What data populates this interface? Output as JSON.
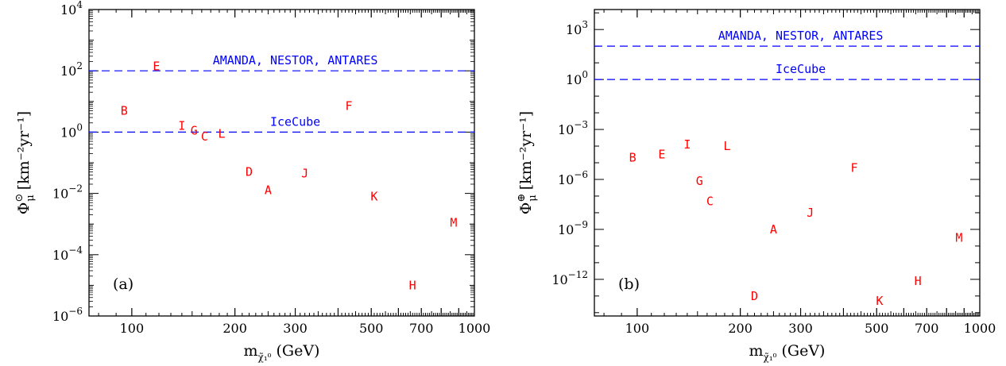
{
  "chart_data": [
    {
      "type": "scatter",
      "panel_label": "(a)",
      "xlabel": "m",
      "xlabel_sub": "χ̃₁⁰",
      "xlabel_unit": "(GeV)",
      "ylabel_symbol": "Φ",
      "ylabel_sup": "⊙",
      "ylabel_sub": "μ",
      "ylabel_unit": "[km⁻²yr⁻¹]",
      "x_scale": "log",
      "y_scale": "log",
      "xlim": [
        75,
        1000
      ],
      "ylim_log10": [
        -6,
        4
      ],
      "x_ticks": [
        {
          "value": 100,
          "label": "100"
        },
        {
          "value": 200,
          "label": "200"
        },
        {
          "value": 300,
          "label": "300"
        },
        {
          "value": 500,
          "label": "500"
        },
        {
          "value": 700,
          "label": "700"
        },
        {
          "value": 1000,
          "label": "1000"
        }
      ],
      "y_ticks": [
        {
          "exp": -6,
          "base": "10",
          "sup": "−6"
        },
        {
          "exp": -4,
          "base": "10",
          "sup": "−4"
        },
        {
          "exp": -2,
          "base": "10",
          "sup": "−2"
        },
        {
          "exp": 0,
          "base": "10",
          "sup": "0"
        },
        {
          "exp": 2,
          "base": "10",
          "sup": "2"
        },
        {
          "exp": 4,
          "base": "10",
          "sup": "4"
        }
      ],
      "ref_lines": [
        {
          "label": "AMANDA, NESTOR, ANTARES",
          "y_log10": 2,
          "label_x": 300
        },
        {
          "label": "IceCube",
          "y_log10": 0,
          "label_x": 300
        }
      ],
      "points": [
        {
          "label": "A",
          "x": 250,
          "y_log10": -1.9
        },
        {
          "label": "B",
          "x": 95,
          "y_log10": 0.7
        },
        {
          "label": "C",
          "x": 163,
          "y_log10": -0.15
        },
        {
          "label": "D",
          "x": 220,
          "y_log10": -1.3
        },
        {
          "label": "E",
          "x": 118,
          "y_log10": 2.15
        },
        {
          "label": "F",
          "x": 430,
          "y_log10": 0.85
        },
        {
          "label": "G",
          "x": 152,
          "y_log10": 0.05
        },
        {
          "label": "H",
          "x": 660,
          "y_log10": -5.0
        },
        {
          "label": "I",
          "x": 140,
          "y_log10": 0.2
        },
        {
          "label": "J",
          "x": 320,
          "y_log10": -1.35
        },
        {
          "label": "K",
          "x": 510,
          "y_log10": -2.1
        },
        {
          "label": "L",
          "x": 183,
          "y_log10": -0.05
        },
        {
          "label": "M",
          "x": 870,
          "y_log10": -2.95
        }
      ]
    },
    {
      "type": "scatter",
      "panel_label": "(b)",
      "xlabel": "m",
      "xlabel_sub": "χ̃₁⁰",
      "xlabel_unit": "(GeV)",
      "ylabel_symbol": "Φ",
      "ylabel_sup": "⊕",
      "ylabel_sub": "μ",
      "ylabel_unit": "[km⁻²yr⁻¹]",
      "x_scale": "log",
      "y_scale": "log",
      "xlim": [
        75,
        1000
      ],
      "ylim_log10": [
        -14.2,
        4.2
      ],
      "x_ticks": [
        {
          "value": 100,
          "label": "100"
        },
        {
          "value": 200,
          "label": "200"
        },
        {
          "value": 300,
          "label": "300"
        },
        {
          "value": 500,
          "label": "500"
        },
        {
          "value": 700,
          "label": "700"
        },
        {
          "value": 1000,
          "label": "1000"
        }
      ],
      "y_ticks": [
        {
          "exp": -12,
          "base": "10",
          "sup": "−12"
        },
        {
          "exp": -9,
          "base": "10",
          "sup": "−9"
        },
        {
          "exp": -6,
          "base": "10",
          "sup": "−6"
        },
        {
          "exp": -3,
          "base": "10",
          "sup": "−3"
        },
        {
          "exp": 0,
          "base": "1",
          "sup": "",
          "plain": "10"
        },
        {
          "exp": 3,
          "base": "10",
          "sup": "3"
        }
      ],
      "y_zero_label": "10",
      "y_zero_sup": "0",
      "ref_lines": [
        {
          "label": "AMANDA, NESTOR, ANTARES",
          "y_log10": 2.0,
          "label_x": 300
        },
        {
          "label": "IceCube",
          "y_log10": 0,
          "label_x": 300
        }
      ],
      "points": [
        {
          "label": "A",
          "x": 250,
          "y_log10": -9.0
        },
        {
          "label": "B",
          "x": 97,
          "y_log10": -4.7
        },
        {
          "label": "C",
          "x": 163,
          "y_log10": -7.3
        },
        {
          "label": "D",
          "x": 220,
          "y_log10": -13.0
        },
        {
          "label": "E",
          "x": 118,
          "y_log10": -4.5
        },
        {
          "label": "F",
          "x": 430,
          "y_log10": -5.3
        },
        {
          "label": "G",
          "x": 152,
          "y_log10": -6.1
        },
        {
          "label": "H",
          "x": 660,
          "y_log10": -12.1
        },
        {
          "label": "I",
          "x": 140,
          "y_log10": -3.9
        },
        {
          "label": "J",
          "x": 320,
          "y_log10": -8.0
        },
        {
          "label": "K",
          "x": 510,
          "y_log10": -13.3
        },
        {
          "label": "L",
          "x": 183,
          "y_log10": -4.0
        },
        {
          "label": "M",
          "x": 870,
          "y_log10": -9.5
        }
      ]
    }
  ],
  "colors": {
    "points": "#ff0000",
    "ref_lines": "#0000ff",
    "axes": "#000000"
  }
}
